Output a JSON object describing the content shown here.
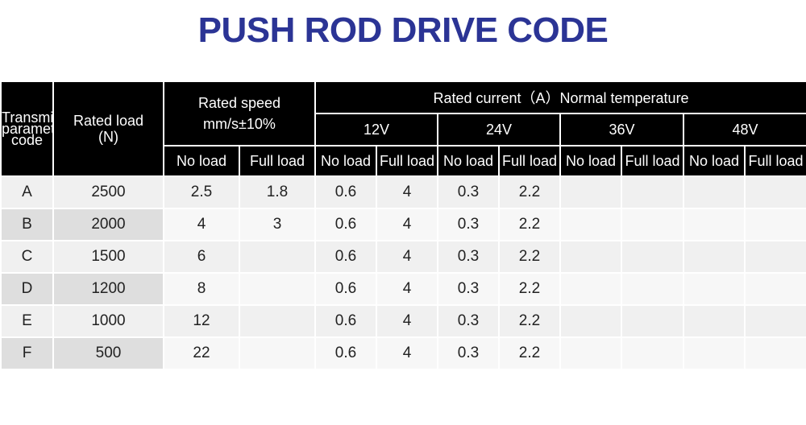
{
  "title": "PUSH ROD DRIVE CODE",
  "table": {
    "header": {
      "param_lines": [
        "Transmission",
        "parameter",
        "code"
      ],
      "load_lines": [
        "Rated load",
        "(N)"
      ],
      "speed_lines": [
        "Rated speed",
        "mm/s±10%"
      ],
      "current": "Rated current（A）Normal temperature",
      "voltages": [
        "12V",
        "24V",
        "36V",
        "48V"
      ],
      "no_load": "No load",
      "full_load": "Full load"
    },
    "rows": [
      {
        "code": "A",
        "load": "2500",
        "speed_no": "2.5",
        "speed_full": "1.8",
        "v12_no": "0.6",
        "v12_full": "4",
        "v24_no": "0.3",
        "v24_full": "2.2",
        "v36_no": "",
        "v36_full": "",
        "v48_no": "",
        "v48_full": ""
      },
      {
        "code": "B",
        "load": "2000",
        "speed_no": "4",
        "speed_full": "3",
        "v12_no": "0.6",
        "v12_full": "4",
        "v24_no": "0.3",
        "v24_full": "2.2",
        "v36_no": "",
        "v36_full": "",
        "v48_no": "",
        "v48_full": ""
      },
      {
        "code": "C",
        "load": "1500",
        "speed_no": "6",
        "speed_full": "",
        "v12_no": "0.6",
        "v12_full": "4",
        "v24_no": "0.3",
        "v24_full": "2.2",
        "v36_no": "",
        "v36_full": "",
        "v48_no": "",
        "v48_full": ""
      },
      {
        "code": "D",
        "load": "1200",
        "speed_no": "8",
        "speed_full": "",
        "v12_no": "0.6",
        "v12_full": "4",
        "v24_no": "0.3",
        "v24_full": "2.2",
        "v36_no": "",
        "v36_full": "",
        "v48_no": "",
        "v48_full": ""
      },
      {
        "code": "E",
        "load": "1000",
        "speed_no": "12",
        "speed_full": "",
        "v12_no": "0.6",
        "v12_full": "4",
        "v24_no": "0.3",
        "v24_full": "2.2",
        "v36_no": "",
        "v36_full": "",
        "v48_no": "",
        "v48_full": ""
      },
      {
        "code": "F",
        "load": "500",
        "speed_no": "22",
        "speed_full": "",
        "v12_no": "0.6",
        "v12_full": "4",
        "v24_no": "0.3",
        "v24_full": "2.2",
        "v36_no": "",
        "v36_full": "",
        "v48_no": "",
        "v48_full": ""
      }
    ]
  }
}
